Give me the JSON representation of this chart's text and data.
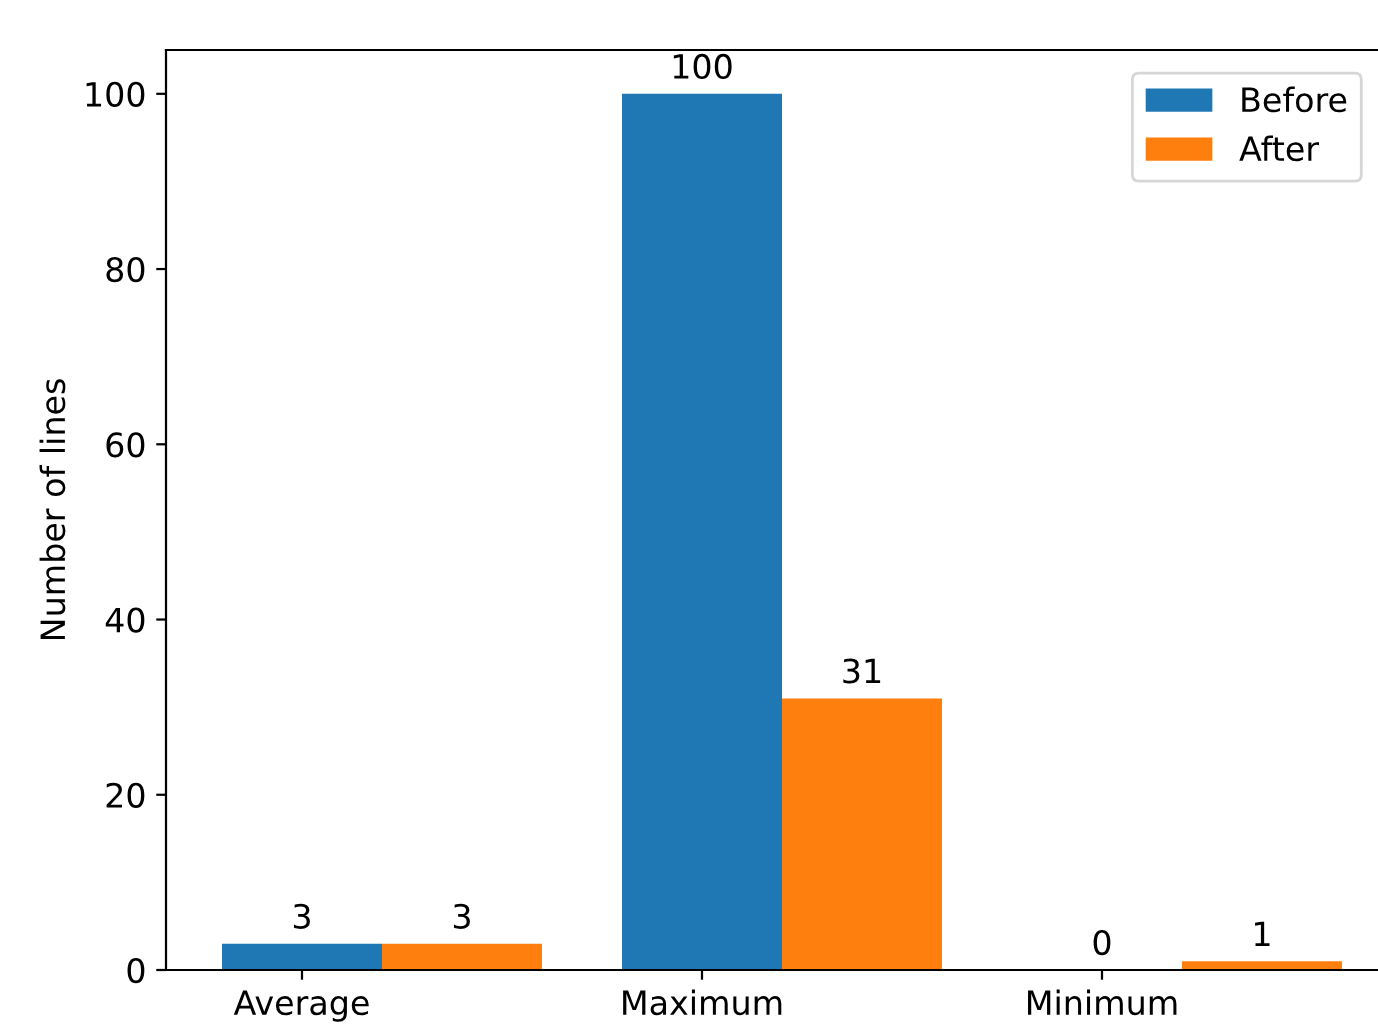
{
  "chart_data": {
    "type": "bar",
    "ylabel": "Number of lines",
    "categories": [
      "Average",
      "Maximum",
      "Minimum"
    ],
    "series": [
      {
        "name": "Before",
        "color": "#1f77b4",
        "values": [
          3,
          100,
          0
        ]
      },
      {
        "name": "After",
        "color": "#ff7f0e",
        "values": [
          3,
          31,
          1
        ]
      }
    ],
    "ylim": [
      0,
      105
    ],
    "yticks": [
      0,
      20,
      40,
      60,
      80,
      100
    ],
    "grid": false,
    "legend": "top right",
    "data_labels": true
  }
}
